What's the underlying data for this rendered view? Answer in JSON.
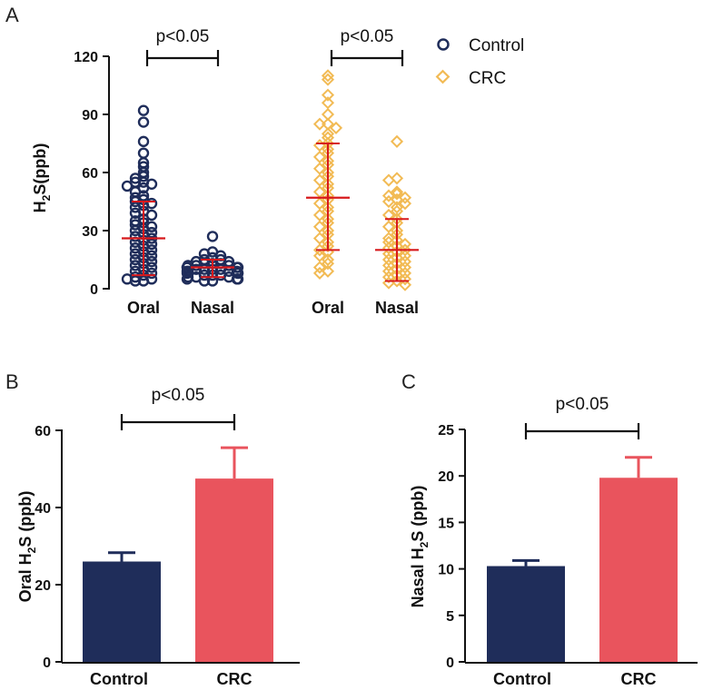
{
  "colors": {
    "control": "#1f2d5a",
    "crc": "#e9545d",
    "crc_marker": "#f2bb55",
    "error_bar": "#d7191c",
    "axis": "#111111"
  },
  "chart_data": [
    {
      "panel": "A",
      "type": "scatter",
      "ylabel_main": "H",
      "ylabel_sub": "2",
      "ylabel_rest": "S(ppb)",
      "ylim": [
        0,
        120
      ],
      "yticks": [
        "0",
        "30",
        "60",
        "90",
        "120"
      ],
      "yticks_values": [
        0,
        30,
        60,
        90,
        120
      ],
      "legend": [
        {
          "name": "Control",
          "marker": "circle-icon"
        },
        {
          "name": "CRC",
          "marker": "diamond-icon"
        }
      ],
      "groups": [
        {
          "label": "Oral",
          "series": "Control",
          "mean": 26,
          "sd_low": 7,
          "sd_high": 45,
          "values": [
            92,
            86,
            76,
            70,
            65,
            63,
            60,
            58,
            57,
            55,
            55,
            54,
            53,
            52,
            50,
            48,
            47,
            46,
            45,
            44,
            43,
            42,
            40,
            39,
            38,
            36,
            35,
            34,
            33,
            32,
            31,
            30,
            29,
            28,
            27,
            26,
            25,
            24,
            23,
            22,
            21,
            20,
            19,
            18,
            17,
            16,
            15,
            14,
            13,
            12,
            11,
            10,
            9,
            8,
            7,
            6,
            5,
            5,
            4,
            4
          ]
        },
        {
          "label": "Nasal",
          "series": "Control",
          "mean": 11,
          "sd_low": 6,
          "sd_high": 15,
          "values": [
            27,
            19,
            18,
            17,
            16,
            15,
            15,
            14,
            14,
            13,
            13,
            13,
            12,
            12,
            12,
            11,
            11,
            11,
            11,
            10,
            10,
            10,
            10,
            9,
            9,
            9,
            9,
            8,
            8,
            8,
            7,
            7,
            7,
            6,
            6,
            6,
            5,
            5,
            5,
            4,
            4
          ]
        },
        {
          "label": "Oral",
          "series": "CRC",
          "mean": 47,
          "sd_low": 20,
          "sd_high": 75,
          "values": [
            110,
            108,
            100,
            96,
            90,
            85,
            85,
            83,
            80,
            78,
            75,
            74,
            72,
            70,
            68,
            66,
            64,
            62,
            60,
            58,
            56,
            54,
            52,
            50,
            48,
            46,
            44,
            42,
            40,
            38,
            36,
            34,
            32,
            30,
            28,
            26,
            24,
            22,
            20,
            19,
            17,
            15,
            13,
            11,
            9,
            8
          ]
        },
        {
          "label": "Nasal",
          "series": "CRC",
          "mean": 20,
          "sd_low": 4,
          "sd_high": 36,
          "values": [
            76,
            57,
            56,
            50,
            49,
            48,
            47,
            46,
            45,
            44,
            42,
            40,
            38,
            36,
            34,
            32,
            30,
            28,
            26,
            25,
            24,
            23,
            22,
            21,
            20,
            19,
            18,
            17,
            16,
            15,
            14,
            13,
            12,
            11,
            10,
            9,
            8,
            7,
            6,
            5,
            4,
            3,
            2
          ]
        }
      ],
      "comparisons": [
        {
          "text": "p<0.05",
          "from": 0,
          "to": 1
        },
        {
          "text": "p<0.05",
          "from": 2,
          "to": 3
        }
      ]
    },
    {
      "panel": "B",
      "type": "bar",
      "ylabel_main": "Oral H",
      "ylabel_sub": "2",
      "ylabel_rest": "S (ppb)",
      "ylim": [
        0,
        60
      ],
      "yticks": [
        "0",
        "20",
        "40",
        "60"
      ],
      "yticks_values": [
        0,
        20,
        40,
        60
      ],
      "categories": [
        "Control",
        "CRC"
      ],
      "values": [
        26,
        47.5
      ],
      "errors": [
        2.3,
        8
      ],
      "comparison": "p<0.05"
    },
    {
      "panel": "C",
      "type": "bar",
      "ylabel_main": "Nasal H",
      "ylabel_sub": "2",
      "ylabel_rest": "S (ppb)",
      "ylim": [
        0,
        25
      ],
      "yticks": [
        "0",
        "5",
        "10",
        "15",
        "20",
        "25"
      ],
      "yticks_values": [
        0,
        5,
        10,
        15,
        20,
        25
      ],
      "categories": [
        "Control",
        "CRC"
      ],
      "values": [
        10.3,
        19.8
      ],
      "errors": [
        0.6,
        2.2
      ],
      "comparison": "p<0.05"
    }
  ]
}
